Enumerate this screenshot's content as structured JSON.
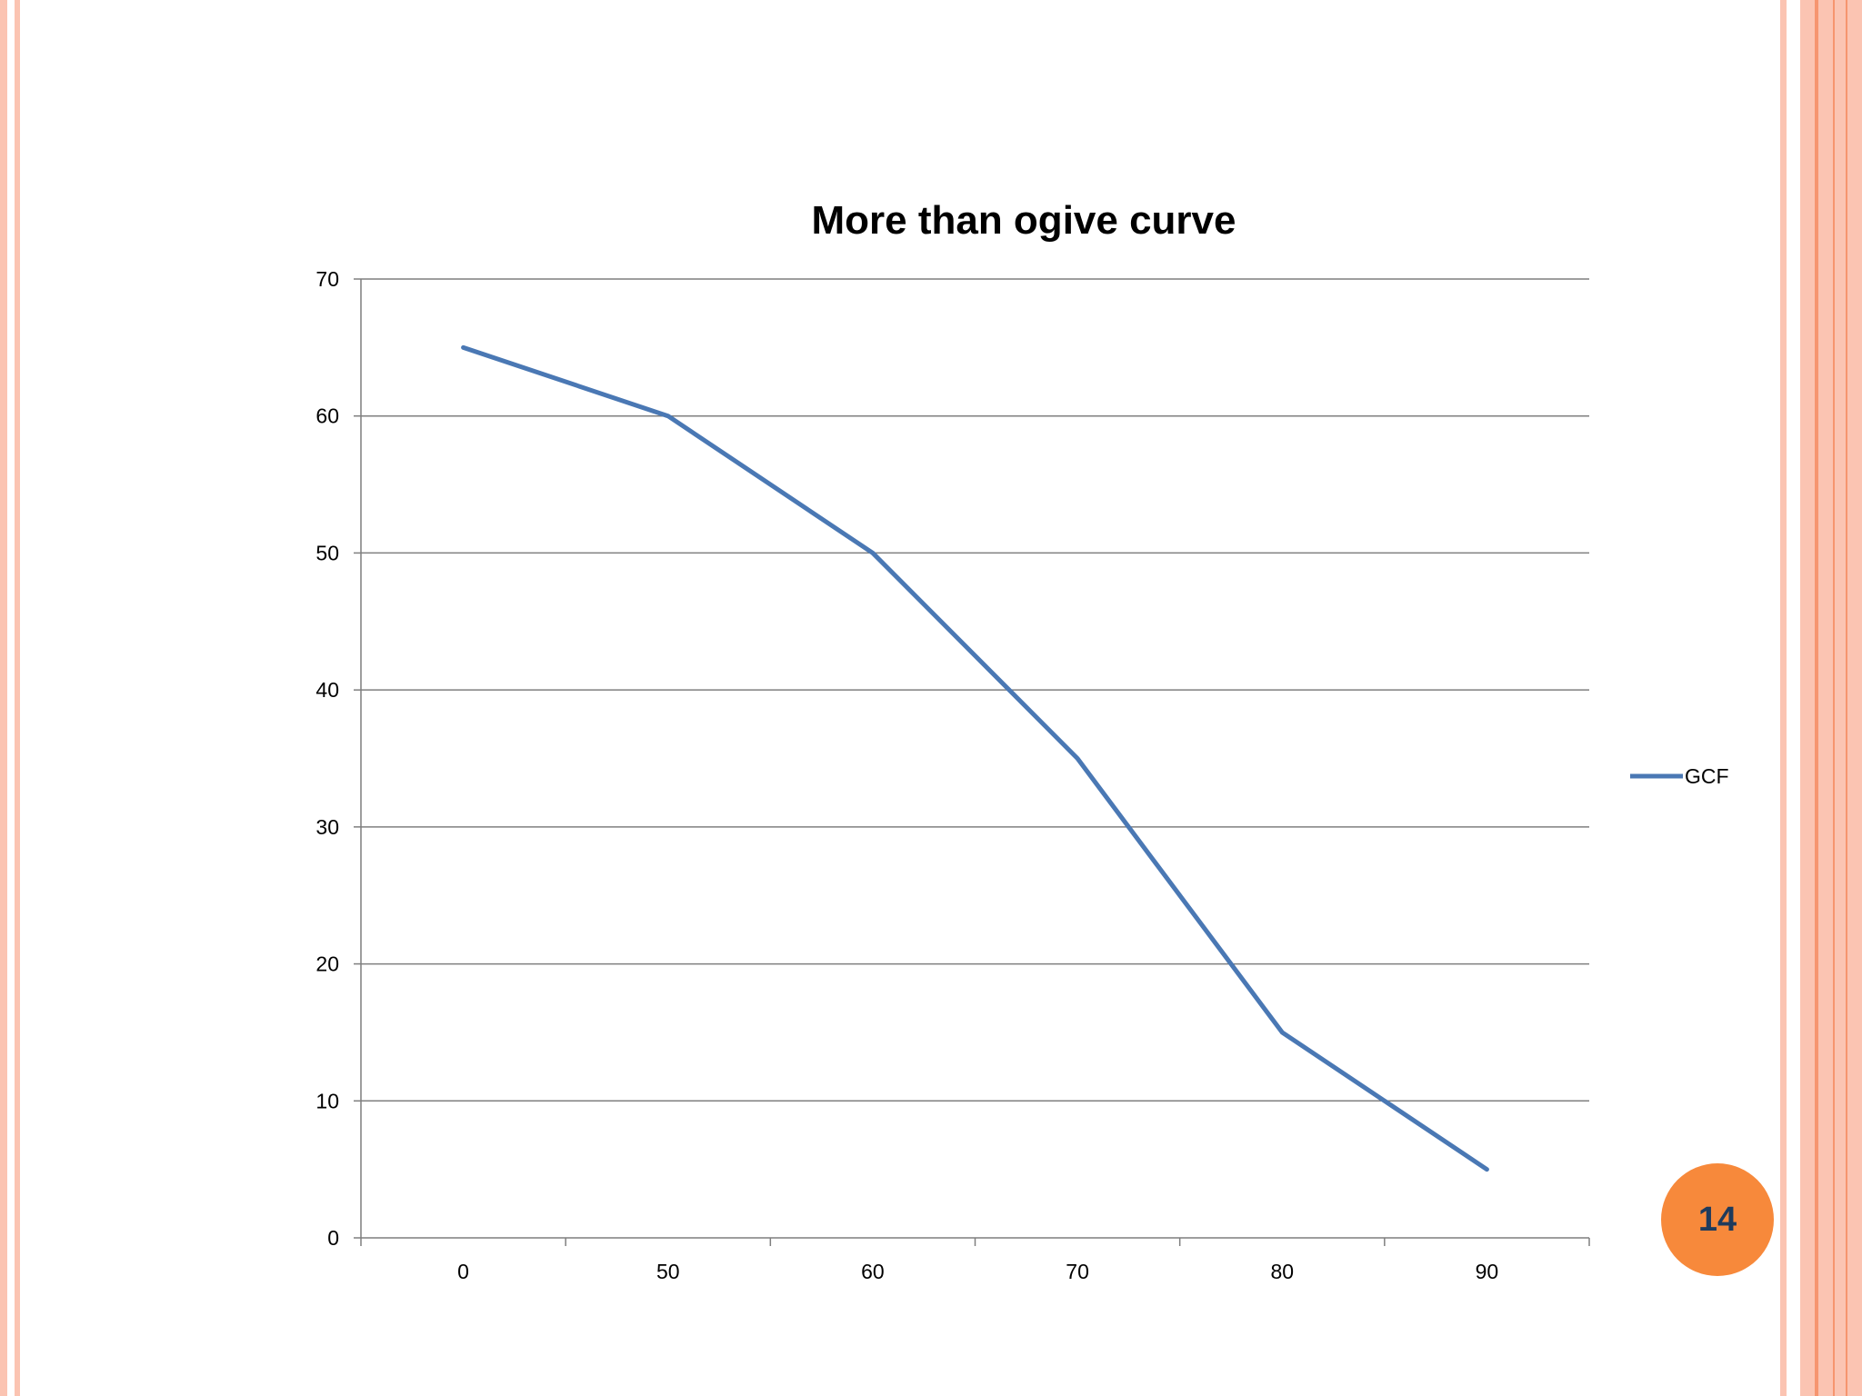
{
  "slide": {
    "page_number": "14"
  },
  "colors": {
    "series": "#4a78b4",
    "gridline": "#7f7f7f",
    "badge": "#f7893b",
    "border": "#fbc4b2"
  },
  "chart_data": {
    "type": "line",
    "title": "More than ogive curve",
    "categories": [
      "0",
      "50",
      "60",
      "70",
      "80",
      "90"
    ],
    "series": [
      {
        "name": "GCF",
        "values": [
          65,
          60,
          50,
          35,
          15,
          5
        ]
      }
    ],
    "ylim": [
      0,
      70
    ],
    "yticks": [
      0,
      10,
      20,
      30,
      40,
      50,
      60,
      70
    ],
    "grid": true,
    "legend": "right"
  }
}
